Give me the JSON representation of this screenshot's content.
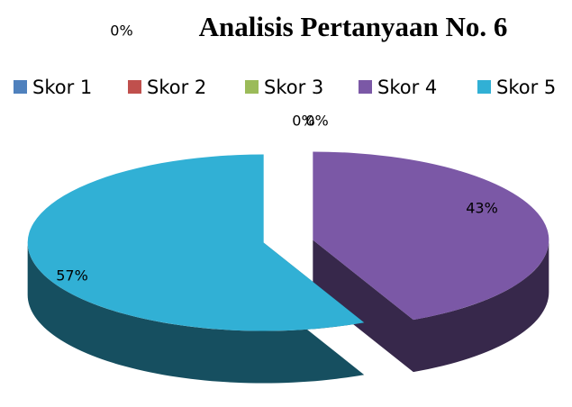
{
  "chart_data": {
    "type": "pie",
    "title": "Analisis Pertanyaan No. 6",
    "categories": [
      "Skor 1",
      "Skor 2",
      "Skor 3",
      "Skor 4",
      "Skor 5"
    ],
    "values": [
      0,
      0,
      0,
      43,
      57
    ],
    "value_labels": [
      "0%",
      "0%",
      "0%",
      "43%",
      "57%"
    ],
    "colors": [
      "#4f81bd",
      "#c0504d",
      "#9bbb59",
      "#7b58a6",
      "#31b0d5"
    ],
    "legend": "top"
  }
}
